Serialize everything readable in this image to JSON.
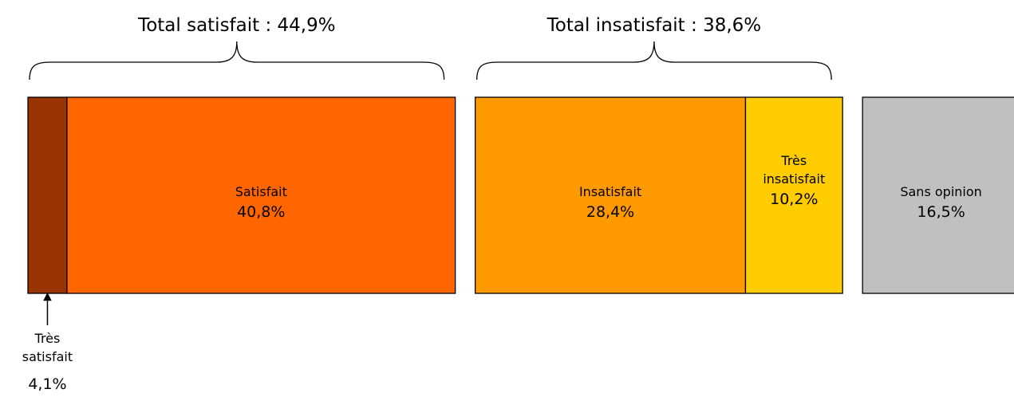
{
  "chart_data": {
    "type": "bar",
    "orientation": "horizontal-stacked",
    "segments": [
      {
        "name": "Très satisfait",
        "name_lines": [
          "Très",
          "satisfait"
        ],
        "value": 4.1,
        "value_label": "4,1%",
        "color": "#993300",
        "group": "satisfait"
      },
      {
        "name": "Satisfait",
        "name_lines": [
          "Satisfait"
        ],
        "value": 40.8,
        "value_label": "40,8%",
        "color": "#FF6600",
        "group": "satisfait"
      },
      {
        "name": "Insatisfait",
        "name_lines": [
          "Insatisfait"
        ],
        "value": 28.4,
        "value_label": "28,4%",
        "color": "#FF9900",
        "group": "insatisfait"
      },
      {
        "name": "Très insatisfait",
        "name_lines": [
          "Très",
          "insatisfait"
        ],
        "value": 10.2,
        "value_label": "10,2%",
        "color": "#FFCC00",
        "group": "insatisfait"
      },
      {
        "name": "Sans opinion",
        "name_lines": [
          "Sans opinion"
        ],
        "value": 16.5,
        "value_label": "16,5%",
        "color": "#C0C0C0",
        "group": "sans-opinion"
      }
    ],
    "groups": [
      {
        "id": "satisfait",
        "label": "Total satisfait : 44,9%",
        "total": 44.9
      },
      {
        "id": "insatisfait",
        "label": "Total insatisfait : 38,6%",
        "total": 38.6
      }
    ]
  }
}
